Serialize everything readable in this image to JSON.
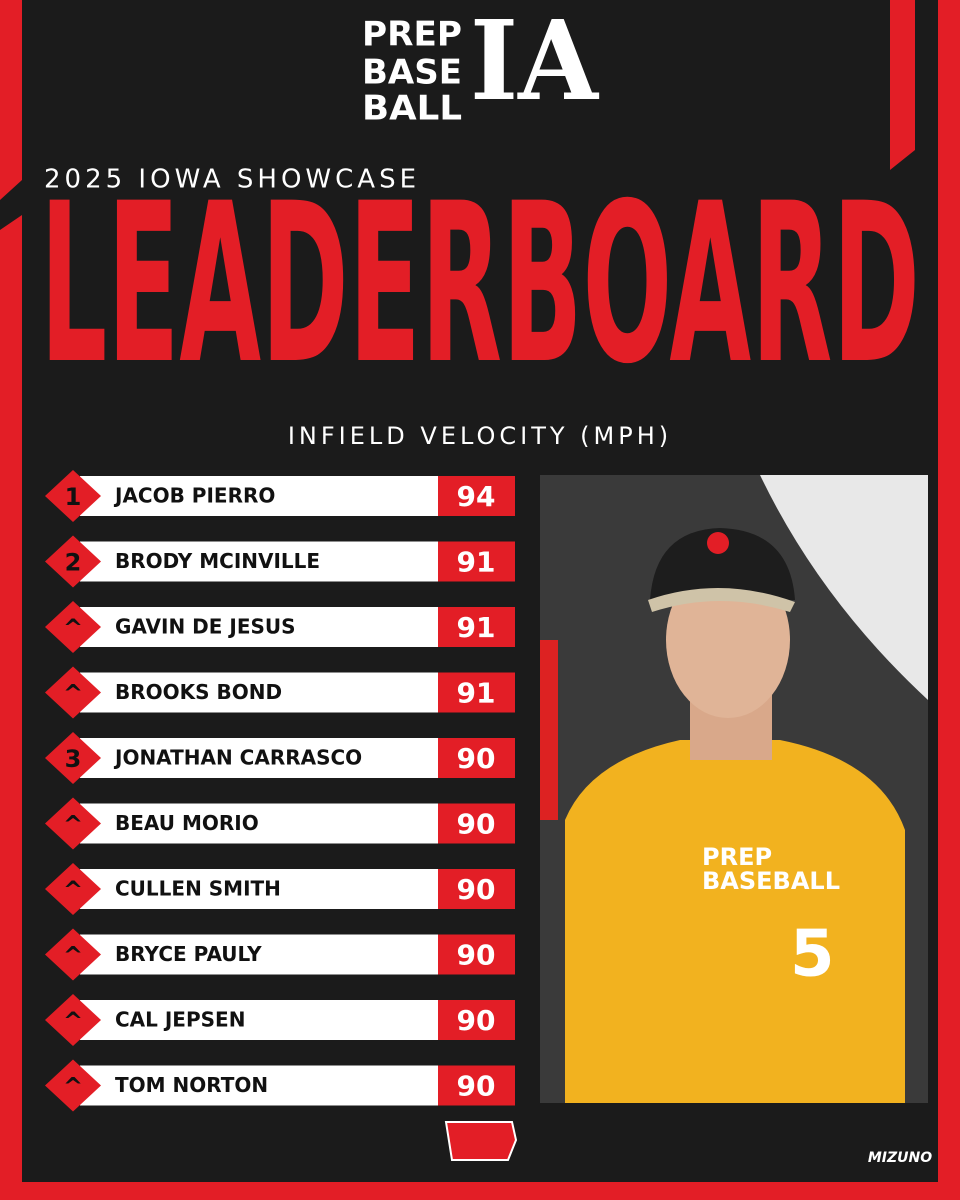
{
  "logo": {
    "lines": [
      "PREP",
      "BASE",
      "BALL"
    ],
    "mark": "IA"
  },
  "event": "2025 IOWA SHOWCASE",
  "title": "LEADERBOARD",
  "subtitle": "INFIELD VELOCITY (MPH)",
  "rows": [
    {
      "rank": "1",
      "name": "JACOB PIERRO",
      "value": 94
    },
    {
      "rank": "2",
      "name": "BRODY MCINVILLE",
      "value": 91
    },
    {
      "rank": "^",
      "name": "GAVIN DE JESUS",
      "value": 91
    },
    {
      "rank": "^",
      "name": "BROOKS BOND",
      "value": 91
    },
    {
      "rank": "3",
      "name": "JONATHAN CARRASCO",
      "value": 90
    },
    {
      "rank": "^",
      "name": "BEAU MORIO",
      "value": 90
    },
    {
      "rank": "^",
      "name": "CULLEN SMITH",
      "value": 90
    },
    {
      "rank": "^",
      "name": "BRYCE PAULY",
      "value": 90
    },
    {
      "rank": "^",
      "name": "CAL JEPSEN",
      "value": 90
    },
    {
      "rank": "^",
      "name": "TOM NORTON",
      "value": 90
    }
  ],
  "photo": {
    "shirt_lines": [
      "PREP",
      "BASEBALL"
    ],
    "number": "5"
  },
  "sponsor": "MIZUNO"
}
